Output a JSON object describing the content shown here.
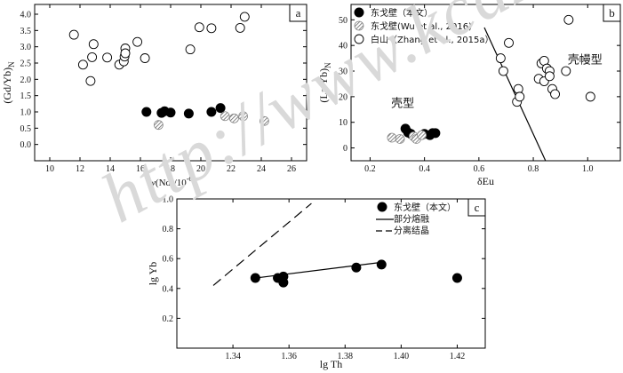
{
  "watermark": "http://www.kcdz.ac.cn",
  "chart_data": [
    {
      "panel": "a",
      "type": "scatter",
      "xlabel_prefix": "w",
      "xlabel_rest": "(Nd)/10",
      "xlabel_sup": "-6",
      "ylabel_main": "(Gd/Yb)",
      "ylabel_sub": "N",
      "xlim": [
        9,
        27
      ],
      "ylim": [
        -0.5,
        4.3
      ],
      "xticks": [
        10,
        12,
        14,
        16,
        18,
        20,
        22,
        24,
        26
      ],
      "yticks": [
        0.0,
        0.5,
        1.0,
        1.5,
        2.0,
        2.5,
        3.0,
        3.5,
        4.0
      ],
      "series": [
        {
          "marker": "filled",
          "points": [
            [
              16.4,
              1.0
            ],
            [
              17.4,
              0.97
            ],
            [
              17.6,
              1.02
            ],
            [
              18.0,
              0.98
            ],
            [
              19.2,
              0.95
            ],
            [
              20.7,
              1.0
            ],
            [
              21.3,
              1.12
            ]
          ]
        },
        {
          "marker": "hatched",
          "points": [
            [
              17.2,
              0.6
            ],
            [
              21.6,
              0.87
            ],
            [
              22.2,
              0.8
            ],
            [
              22.8,
              0.87
            ],
            [
              24.2,
              0.72
            ]
          ]
        },
        {
          "marker": "open",
          "points": [
            [
              11.6,
              3.37
            ],
            [
              12.2,
              2.45
            ],
            [
              12.7,
              1.95
            ],
            [
              12.8,
              2.68
            ],
            [
              12.9,
              3.08
            ],
            [
              13.8,
              2.67
            ],
            [
              14.6,
              2.45
            ],
            [
              14.9,
              2.55
            ],
            [
              14.95,
              2.7
            ],
            [
              15.0,
              2.95
            ],
            [
              15.0,
              2.8
            ],
            [
              15.8,
              3.15
            ],
            [
              16.3,
              2.65
            ],
            [
              19.3,
              2.92
            ],
            [
              19.9,
              3.6
            ],
            [
              20.7,
              3.57
            ],
            [
              22.6,
              3.58
            ],
            [
              22.9,
              3.92
            ]
          ]
        }
      ]
    },
    {
      "panel": "b",
      "type": "scatter",
      "xlabel": "δEu",
      "ylabel_main": "(La/Yb)",
      "ylabel_sub": "N",
      "xlim": [
        0.13,
        1.12
      ],
      "ylim": [
        -5,
        56
      ],
      "xticks": [
        0.2,
        0.4,
        0.6,
        0.8,
        1.0
      ],
      "yticks": [
        0,
        10,
        20,
        30,
        40,
        50
      ],
      "legend": [
        {
          "marker": "filled",
          "label": "东戈壁（本文）"
        },
        {
          "marker": "hatched",
          "label": "东戈壁(Wu et al., 2016)"
        },
        {
          "marker": "open",
          "label": "白山（Zhang et al., 2015a）"
        }
      ],
      "region_labels": [
        {
          "text": "壳型",
          "at": [
            0.32,
            16
          ]
        },
        {
          "text": "壳幔型",
          "at": [
            0.99,
            33
          ]
        }
      ],
      "boundary_line": [
        [
          0.62,
          47
        ],
        [
          0.845,
          -5
        ]
      ],
      "series": [
        {
          "marker": "filled",
          "points": [
            [
              0.33,
              7.5
            ],
            [
              0.34,
              6.0
            ],
            [
              0.35,
              5.5
            ],
            [
              0.4,
              5.5
            ],
            [
              0.42,
              5.0
            ],
            [
              0.43,
              5.8
            ],
            [
              0.44,
              5.8
            ]
          ]
        },
        {
          "marker": "hatched",
          "points": [
            [
              0.28,
              4.0
            ],
            [
              0.31,
              3.5
            ],
            [
              0.36,
              4.5
            ],
            [
              0.37,
              3.5
            ],
            [
              0.39,
              5.0
            ]
          ]
        },
        {
          "marker": "open",
          "points": [
            [
              0.68,
              35
            ],
            [
              0.69,
              30
            ],
            [
              0.71,
              41
            ],
            [
              0.74,
              18
            ],
            [
              0.745,
              23
            ],
            [
              0.75,
              20
            ],
            [
              0.82,
              27
            ],
            [
              0.83,
              33
            ],
            [
              0.84,
              34
            ],
            [
              0.84,
              26
            ],
            [
              0.85,
              31
            ],
            [
              0.86,
              30
            ],
            [
              0.86,
              28
            ],
            [
              0.87,
              23
            ],
            [
              0.88,
              21
            ],
            [
              0.92,
              30
            ],
            [
              0.93,
              50
            ],
            [
              1.01,
              20
            ]
          ]
        }
      ]
    },
    {
      "panel": "c",
      "type": "scatter",
      "xlabel": "lg Th",
      "ylabel": "lg Yb",
      "xlim": [
        1.32,
        1.43
      ],
      "ylim": [
        0.0,
        1.0
      ],
      "xticks": [
        1.34,
        1.36,
        1.38,
        1.4,
        1.42
      ],
      "yticks": [
        0.2,
        0.4,
        0.6,
        0.8,
        1.0
      ],
      "yticklabels": [
        "0.2",
        "0.4",
        "0.6",
        "0.8",
        "1.0"
      ],
      "legend": [
        {
          "marker": "filled",
          "label": "东戈壁（本文）"
        },
        {
          "marker": "solid-line",
          "label": "部分熔融"
        },
        {
          "marker": "dashed-line",
          "label": "分离结晶"
        }
      ],
      "series": [
        {
          "marker": "filled",
          "points": [
            [
              1.348,
              0.47
            ],
            [
              1.356,
              0.47
            ],
            [
              1.358,
              0.44
            ],
            [
              1.358,
              0.48
            ],
            [
              1.384,
              0.54
            ],
            [
              1.393,
              0.56
            ],
            [
              1.42,
              0.47
            ]
          ]
        }
      ],
      "lines": [
        {
          "style": "solid",
          "points": [
            [
              1.348,
              0.47
            ],
            [
              1.393,
              0.575
            ]
          ]
        },
        {
          "style": "dashed",
          "points": [
            [
              1.333,
              0.42
            ],
            [
              1.368,
              0.97
            ]
          ]
        }
      ]
    }
  ]
}
